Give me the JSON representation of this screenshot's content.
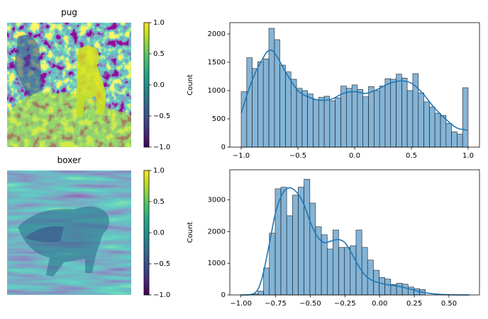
{
  "chart_data": [
    {
      "type": "image",
      "title": "pug",
      "colormap": "viridis",
      "ylim": [
        -1,
        1
      ],
      "yticks": [
        {
          "value": -1,
          "label": "−1.0"
        },
        {
          "value": -0.5,
          "label": "−0.5"
        },
        {
          "value": 0,
          "label": "0.0"
        },
        {
          "value": 0.5,
          "label": "0.5"
        },
        {
          "value": 1,
          "label": "1.0"
        }
      ]
    },
    {
      "type": "histogram",
      "ylabel": "Count",
      "color": "#1f77b4",
      "bins": [
        -1,
        -0.951,
        -0.902,
        -0.854,
        -0.805,
        -0.756,
        -0.707,
        -0.659,
        -0.61,
        -0.561,
        -0.512,
        -0.463,
        -0.415,
        -0.366,
        -0.317,
        -0.268,
        -0.22,
        -0.171,
        -0.122,
        -0.073,
        -0.024,
        0.024,
        0.073,
        0.122,
        0.171,
        0.22,
        0.268,
        0.317,
        0.366,
        0.415,
        0.463,
        0.512,
        0.561,
        0.61,
        0.659,
        0.707,
        0.756,
        0.805,
        0.854,
        0.902,
        0.951,
        1.0
      ],
      "values": [
        980,
        1580,
        1390,
        1510,
        1560,
        2100,
        1900,
        1450,
        1330,
        1200,
        1040,
        1000,
        940,
        840,
        880,
        900,
        820,
        870,
        1080,
        1040,
        1100,
        1020,
        890,
        1070,
        1000,
        1080,
        1210,
        1200,
        1290,
        1220,
        1000,
        1300,
        960,
        800,
        710,
        600,
        560,
        420,
        270,
        230,
        1050
      ],
      "kde": {
        "x": [
          -1,
          -0.9,
          -0.8,
          -0.75,
          -0.7,
          -0.6,
          -0.5,
          -0.4,
          -0.3,
          -0.2,
          -0.1,
          0,
          0.1,
          0.2,
          0.3,
          0.4,
          0.5,
          0.6,
          0.7,
          0.8,
          0.9,
          1.0
        ],
        "values": [
          600,
          1200,
          1600,
          1710,
          1650,
          1300,
          1000,
          880,
          830,
          850,
          950,
          980,
          950,
          1020,
          1120,
          1170,
          1130,
          950,
          700,
          500,
          340,
          300
        ]
      },
      "xlim": [
        -1.1,
        1.1
      ],
      "ylim": [
        0,
        2200
      ],
      "xticks": [
        {
          "value": -1,
          "label": "−1.0"
        },
        {
          "value": -0.5,
          "label": "−0.5"
        },
        {
          "value": 0,
          "label": "0.0"
        },
        {
          "value": 0.5,
          "label": "0.5"
        },
        {
          "value": 1,
          "label": "1.0"
        }
      ],
      "yticks": [
        0,
        500,
        1000,
        1500,
        2000
      ]
    },
    {
      "type": "image",
      "title": "boxer",
      "colormap": "viridis",
      "ylim": [
        -1,
        1
      ],
      "yticks": [
        {
          "value": -1,
          "label": "−1.0"
        },
        {
          "value": -0.5,
          "label": "−0.5"
        },
        {
          "value": 0,
          "label": "0.0"
        },
        {
          "value": 0.5,
          "label": "0.5"
        },
        {
          "value": 1,
          "label": "1.0"
        }
      ]
    },
    {
      "type": "histogram",
      "ylabel": "Count",
      "color": "#1f77b4",
      "bins": [
        -0.92,
        -0.878,
        -0.837,
        -0.795,
        -0.753,
        -0.712,
        -0.67,
        -0.628,
        -0.587,
        -0.545,
        -0.503,
        -0.462,
        -0.42,
        -0.378,
        -0.337,
        -0.295,
        -0.253,
        -0.212,
        -0.17,
        -0.128,
        -0.087,
        -0.045,
        -0.003,
        0.038,
        0.08,
        0.122,
        0.163,
        0.205,
        0.247,
        0.288,
        0.33
      ],
      "values": [
        30,
        120,
        850,
        1950,
        3350,
        3400,
        2500,
        3150,
        3400,
        3650,
        2900,
        2150,
        1900,
        1450,
        2050,
        1500,
        1500,
        1550,
        2050,
        1500,
        1100,
        780,
        550,
        500,
        330,
        370,
        340,
        250,
        200,
        170
      ],
      "kde": {
        "x": [
          -1.0,
          -0.9,
          -0.85,
          -0.8,
          -0.75,
          -0.7,
          -0.65,
          -0.6,
          -0.55,
          -0.5,
          -0.45,
          -0.4,
          -0.35,
          -0.3,
          -0.25,
          -0.2,
          -0.15,
          -0.1,
          -0.05,
          0.0,
          0.05,
          0.1,
          0.15,
          0.2,
          0.25,
          0.3,
          0.4,
          0.5,
          0.65
        ],
        "values": [
          0,
          60,
          500,
          1500,
          2600,
          3200,
          3380,
          3250,
          2900,
          2300,
          1850,
          1650,
          1700,
          1750,
          1650,
          1300,
          900,
          600,
          450,
          380,
          330,
          300,
          260,
          210,
          150,
          90,
          30,
          8,
          0
        ]
      },
      "xlim": [
        -1.08,
        0.72
      ],
      "ylim": [
        0,
        3950
      ],
      "xticks": [
        {
          "value": -1,
          "label": "−1.00"
        },
        {
          "value": -0.75,
          "label": "−0.75"
        },
        {
          "value": -0.5,
          "label": "−0.50"
        },
        {
          "value": -0.25,
          "label": "−0.25"
        },
        {
          "value": 0,
          "label": "0.00"
        },
        {
          "value": 0.25,
          "label": "0.25"
        },
        {
          "value": 0.5,
          "label": "0.50"
        }
      ],
      "yticks": [
        0,
        1000,
        2000,
        3000
      ]
    }
  ]
}
